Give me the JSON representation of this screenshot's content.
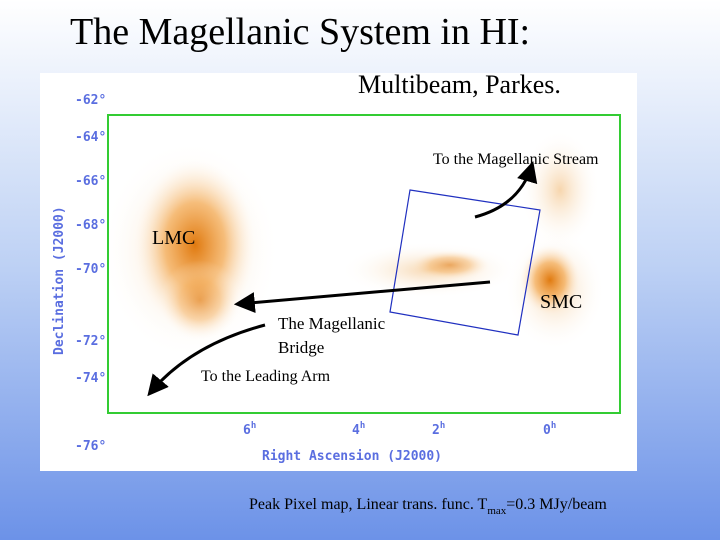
{
  "header": {
    "title": "The Magellanic System in HI:",
    "subtitle": "Multibeam, Parkes."
  },
  "map": {
    "y_axis_label": "Declination (J2000)",
    "x_axis_label": "Right Ascension (J2000)",
    "y_tick_labels": [
      "-62°",
      "-64°",
      "-66°",
      "-68°",
      "-70°",
      "-72°",
      "-74°",
      "-76°"
    ],
    "x_tick_labels": [
      {
        "main": "6",
        "sup": "h"
      },
      {
        "main": "4",
        "sup": "h"
      },
      {
        "main": "2",
        "sup": "h"
      },
      {
        "main": "0",
        "sup": "h"
      }
    ],
    "annotations": {
      "stream": "To the Magellanic Stream",
      "lmc": "LMC",
      "smc": "SMC",
      "bridge": [
        "The Magellanic",
        "Bridge"
      ],
      "leading_arm": "To the Leading Arm"
    }
  },
  "caption": {
    "text": "Peak Pixel map, Linear trans. func. T",
    "subscript": "max",
    "rest": "=0.3 MJy/beam"
  }
}
